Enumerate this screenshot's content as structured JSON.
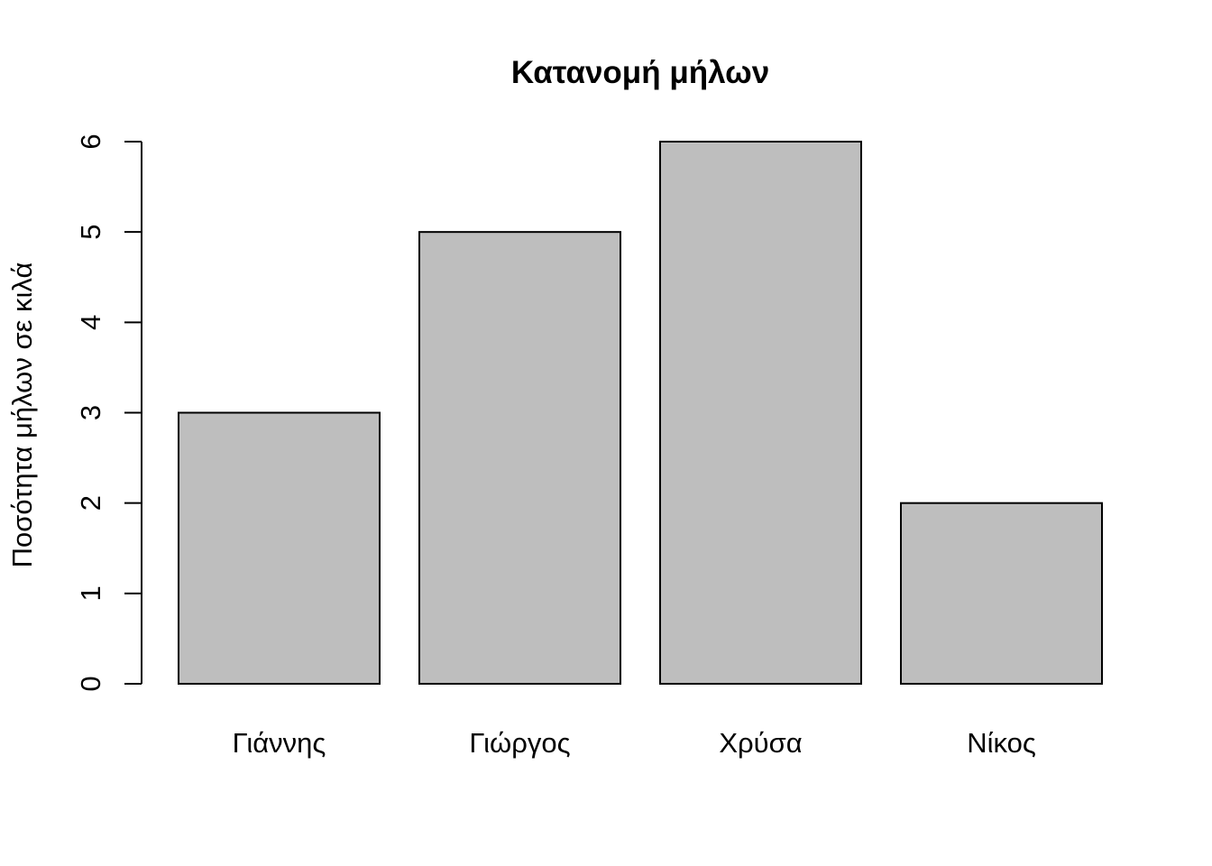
{
  "chart_data": {
    "type": "bar",
    "title": "Κατανομή μήλων",
    "xlabel": "",
    "ylabel": "Ποσότητα μήλων σε κιλά",
    "categories": [
      "Γιάννης",
      "Γιώργος",
      "Χρύσα",
      "Νίκος"
    ],
    "values": [
      3,
      5,
      6,
      2
    ],
    "ylim": [
      0,
      6
    ],
    "yticks": [
      "0",
      "1",
      "2",
      "3",
      "4",
      "5",
      "6"
    ],
    "grid": false,
    "legend": "none",
    "colors": {
      "bar_fill": "#bebebe",
      "bar_stroke": "#000000"
    }
  }
}
